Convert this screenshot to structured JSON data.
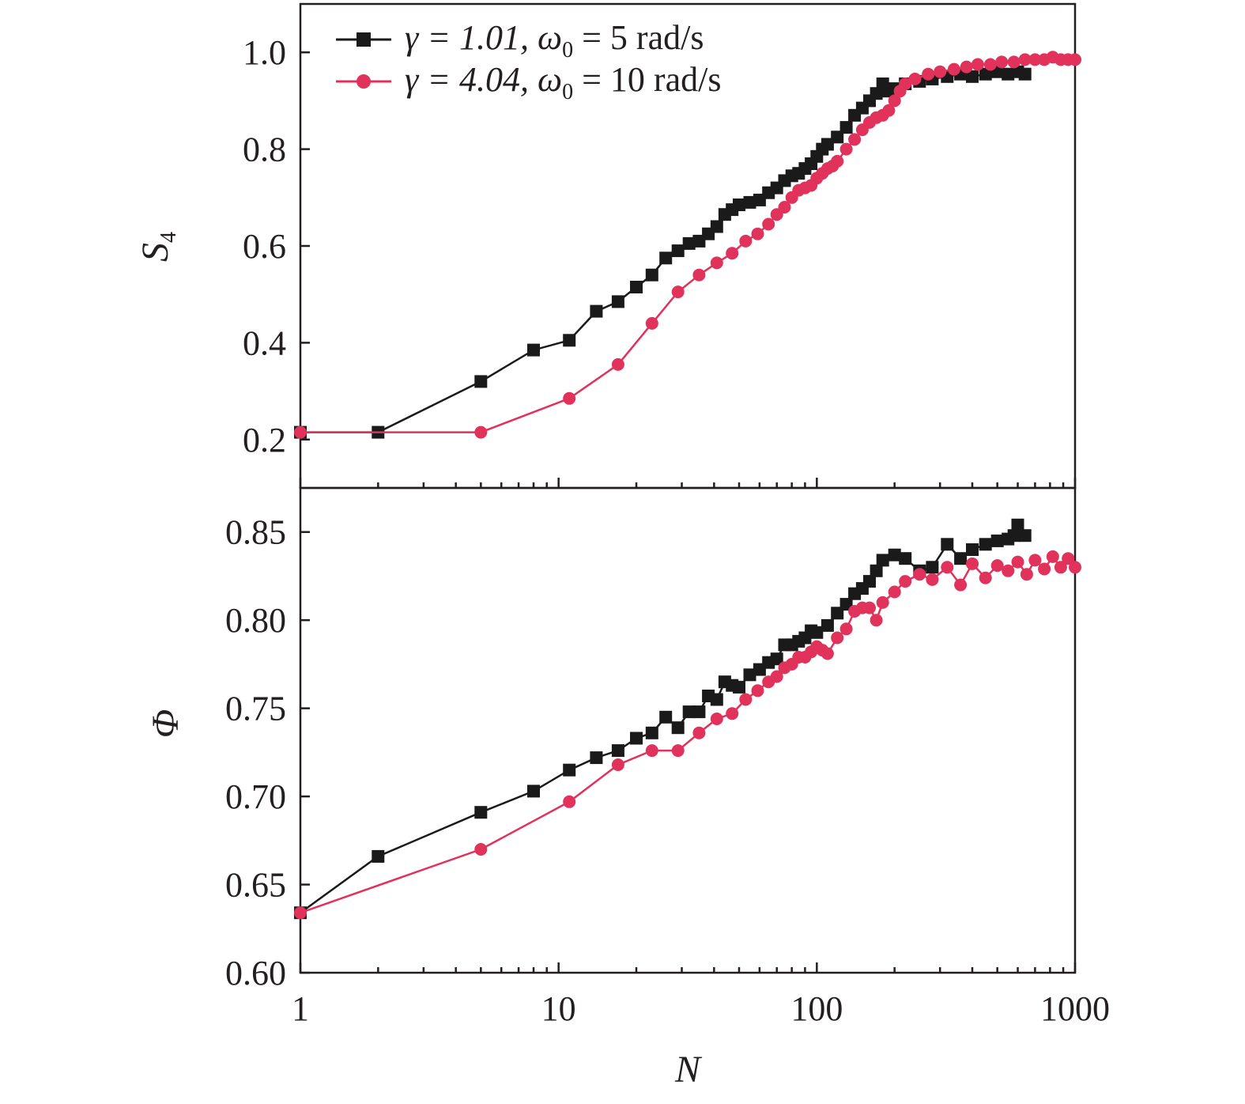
{
  "chart_data": [
    {
      "type": "line",
      "panel": "top",
      "xscale": "log",
      "xlim": [
        1,
        1000
      ],
      "xticks": [
        1,
        10,
        100,
        1000
      ],
      "ylabel": "S",
      "ylabel_sub": "4",
      "ylim": [
        0.1,
        1.1
      ],
      "yticks": [
        0.2,
        0.4,
        0.6,
        0.8,
        1.0
      ],
      "ytick_labels": [
        "0.2",
        "0.4",
        "0.6",
        "0.8",
        "1.0"
      ],
      "legend_position": "top-left",
      "series": [
        {
          "legend": {
            "gamma": "γ = 1.01, ",
            "omega": "ω",
            "omega_sub": "0",
            "rest": " = 5 rad/s"
          },
          "color": "#1a1a1a",
          "marker": "square",
          "points": [
            [
              1,
              0.215
            ],
            [
              2,
              0.215
            ],
            [
              5,
              0.32
            ],
            [
              8,
              0.385
            ],
            [
              11,
              0.405
            ],
            [
              14,
              0.465
            ],
            [
              17,
              0.485
            ],
            [
              20,
              0.515
            ],
            [
              23,
              0.54
            ],
            [
              26,
              0.575
            ],
            [
              29,
              0.59
            ],
            [
              32,
              0.605
            ],
            [
              35,
              0.61
            ],
            [
              38,
              0.625
            ],
            [
              41,
              0.64
            ],
            [
              44,
              0.665
            ],
            [
              47,
              0.675
            ],
            [
              50,
              0.685
            ],
            [
              55,
              0.69
            ],
            [
              60,
              0.695
            ],
            [
              65,
              0.71
            ],
            [
              70,
              0.72
            ],
            [
              75,
              0.735
            ],
            [
              80,
              0.745
            ],
            [
              85,
              0.75
            ],
            [
              90,
              0.76
            ],
            [
              95,
              0.77
            ],
            [
              100,
              0.785
            ],
            [
              105,
              0.8
            ],
            [
              110,
              0.81
            ],
            [
              120,
              0.825
            ],
            [
              130,
              0.845
            ],
            [
              140,
              0.87
            ],
            [
              150,
              0.885
            ],
            [
              160,
              0.9
            ],
            [
              170,
              0.915
            ],
            [
              180,
              0.935
            ],
            [
              190,
              0.92
            ],
            [
              200,
              0.925
            ],
            [
              220,
              0.935
            ],
            [
              250,
              0.94
            ],
            [
              280,
              0.945
            ],
            [
              320,
              0.95
            ],
            [
              360,
              0.955
            ],
            [
              400,
              0.95
            ],
            [
              450,
              0.955
            ],
            [
              500,
              0.96
            ],
            [
              550,
              0.955
            ],
            [
              600,
              0.96
            ],
            [
              640,
              0.955
            ]
          ]
        },
        {
          "legend": {
            "gamma": "γ = 4.04, ",
            "omega": "ω",
            "omega_sub": "0",
            "rest": " = 10 rad/s"
          },
          "color": "#e0325a",
          "marker": "circle",
          "points": [
            [
              1,
              0.215
            ],
            [
              5,
              0.215
            ],
            [
              11,
              0.285
            ],
            [
              17,
              0.355
            ],
            [
              23,
              0.44
            ],
            [
              29,
              0.505
            ],
            [
              35,
              0.54
            ],
            [
              41,
              0.565
            ],
            [
              47,
              0.585
            ],
            [
              53,
              0.61
            ],
            [
              59,
              0.625
            ],
            [
              65,
              0.645
            ],
            [
              70,
              0.665
            ],
            [
              75,
              0.68
            ],
            [
              80,
              0.7
            ],
            [
              85,
              0.715
            ],
            [
              90,
              0.72
            ],
            [
              95,
              0.725
            ],
            [
              100,
              0.74
            ],
            [
              105,
              0.75
            ],
            [
              110,
              0.76
            ],
            [
              115,
              0.765
            ],
            [
              120,
              0.775
            ],
            [
              130,
              0.8
            ],
            [
              140,
              0.82
            ],
            [
              150,
              0.84
            ],
            [
              160,
              0.855
            ],
            [
              170,
              0.865
            ],
            [
              180,
              0.87
            ],
            [
              190,
              0.88
            ],
            [
              200,
              0.9
            ],
            [
              210,
              0.92
            ],
            [
              220,
              0.935
            ],
            [
              240,
              0.945
            ],
            [
              270,
              0.955
            ],
            [
              300,
              0.96
            ],
            [
              340,
              0.965
            ],
            [
              380,
              0.97
            ],
            [
              420,
              0.975
            ],
            [
              470,
              0.975
            ],
            [
              520,
              0.98
            ],
            [
              580,
              0.98
            ],
            [
              640,
              0.985
            ],
            [
              700,
              0.985
            ],
            [
              760,
              0.985
            ],
            [
              820,
              0.99
            ],
            [
              880,
              0.985
            ],
            [
              940,
              0.985
            ],
            [
              1000,
              0.985
            ]
          ]
        }
      ]
    },
    {
      "type": "line",
      "panel": "bottom",
      "xscale": "log",
      "xlim": [
        1,
        1000
      ],
      "xticks": [
        1,
        10,
        100,
        1000
      ],
      "xtick_labels": [
        "1",
        "10",
        "100",
        "1000"
      ],
      "xlabel": "N",
      "ylabel": "Φ",
      "ylim": [
        0.6,
        0.875
      ],
      "yticks": [
        0.6,
        0.65,
        0.7,
        0.75,
        0.8,
        0.85
      ],
      "ytick_labels": [
        "0.60",
        "0.65",
        "0.70",
        "0.75",
        "0.80",
        "0.85"
      ],
      "series": [
        {
          "color": "#1a1a1a",
          "marker": "square",
          "points": [
            [
              1,
              0.634
            ],
            [
              2,
              0.666
            ],
            [
              5,
              0.691
            ],
            [
              8,
              0.703
            ],
            [
              11,
              0.715
            ],
            [
              14,
              0.722
            ],
            [
              17,
              0.726
            ],
            [
              20,
              0.733
            ],
            [
              23,
              0.736
            ],
            [
              26,
              0.745
            ],
            [
              29,
              0.739
            ],
            [
              32,
              0.748
            ],
            [
              35,
              0.748
            ],
            [
              38,
              0.757
            ],
            [
              41,
              0.755
            ],
            [
              44,
              0.765
            ],
            [
              47,
              0.763
            ],
            [
              50,
              0.762
            ],
            [
              55,
              0.769
            ],
            [
              60,
              0.772
            ],
            [
              65,
              0.776
            ],
            [
              70,
              0.778
            ],
            [
              75,
              0.786
            ],
            [
              80,
              0.786
            ],
            [
              85,
              0.788
            ],
            [
              90,
              0.79
            ],
            [
              95,
              0.794
            ],
            [
              100,
              0.793
            ],
            [
              110,
              0.797
            ],
            [
              120,
              0.804
            ],
            [
              130,
              0.809
            ],
            [
              140,
              0.815
            ],
            [
              150,
              0.818
            ],
            [
              160,
              0.822
            ],
            [
              170,
              0.828
            ],
            [
              180,
              0.834
            ],
            [
              200,
              0.837
            ],
            [
              220,
              0.835
            ],
            [
              250,
              0.828
            ],
            [
              280,
              0.83
            ],
            [
              320,
              0.843
            ],
            [
              360,
              0.835
            ],
            [
              400,
              0.84
            ],
            [
              450,
              0.843
            ],
            [
              500,
              0.845
            ],
            [
              550,
              0.846
            ],
            [
              580,
              0.848
            ],
            [
              600,
              0.854
            ],
            [
              640,
              0.848
            ]
          ]
        },
        {
          "color": "#e0325a",
          "marker": "circle",
          "points": [
            [
              1,
              0.634
            ],
            [
              5,
              0.67
            ],
            [
              11,
              0.697
            ],
            [
              17,
              0.718
            ],
            [
              23,
              0.726
            ],
            [
              29,
              0.726
            ],
            [
              35,
              0.736
            ],
            [
              41,
              0.744
            ],
            [
              47,
              0.747
            ],
            [
              53,
              0.755
            ],
            [
              59,
              0.76
            ],
            [
              65,
              0.765
            ],
            [
              70,
              0.768
            ],
            [
              75,
              0.773
            ],
            [
              80,
              0.775
            ],
            [
              85,
              0.779
            ],
            [
              90,
              0.779
            ],
            [
              95,
              0.782
            ],
            [
              100,
              0.785
            ],
            [
              105,
              0.783
            ],
            [
              110,
              0.781
            ],
            [
              120,
              0.79
            ],
            [
              130,
              0.795
            ],
            [
              140,
              0.805
            ],
            [
              150,
              0.807
            ],
            [
              160,
              0.807
            ],
            [
              170,
              0.8
            ],
            [
              180,
              0.81
            ],
            [
              200,
              0.816
            ],
            [
              220,
              0.822
            ],
            [
              250,
              0.826
            ],
            [
              280,
              0.823
            ],
            [
              320,
              0.83
            ],
            [
              360,
              0.82
            ],
            [
              400,
              0.832
            ],
            [
              450,
              0.824
            ],
            [
              500,
              0.831
            ],
            [
              550,
              0.828
            ],
            [
              600,
              0.833
            ],
            [
              650,
              0.826
            ],
            [
              700,
              0.834
            ],
            [
              760,
              0.829
            ],
            [
              820,
              0.836
            ],
            [
              880,
              0.83
            ],
            [
              940,
              0.835
            ],
            [
              1000,
              0.83
            ]
          ]
        }
      ]
    }
  ]
}
